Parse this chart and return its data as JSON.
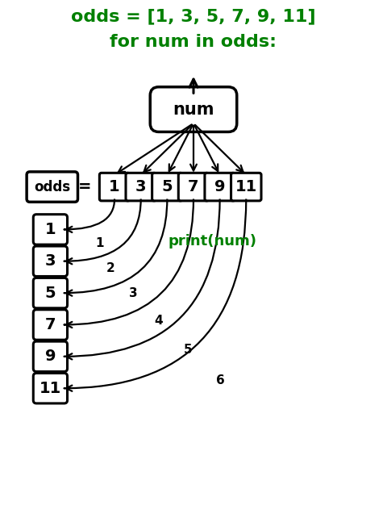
{
  "title1": "odds = [1, 3, 5, 7, 9, 11]",
  "title2": "for num in odds:",
  "title_color": "#008000",
  "title_fontsize": 16,
  "odds_values": [
    1,
    3,
    5,
    7,
    9,
    11
  ],
  "output_values": [
    1,
    3,
    5,
    7,
    9,
    11
  ],
  "print_label": "print(num)",
  "print_color": "#008000",
  "num_label": "num",
  "odds_label": "odds",
  "box_facecolor": "#ffffff",
  "box_edgecolor": "#000000",
  "arrow_color": "#000000",
  "label_color": "#000000",
  "bg_color": "#ffffff",
  "iter_labels": [
    "1",
    "2",
    "3",
    "4",
    "5",
    "6"
  ]
}
